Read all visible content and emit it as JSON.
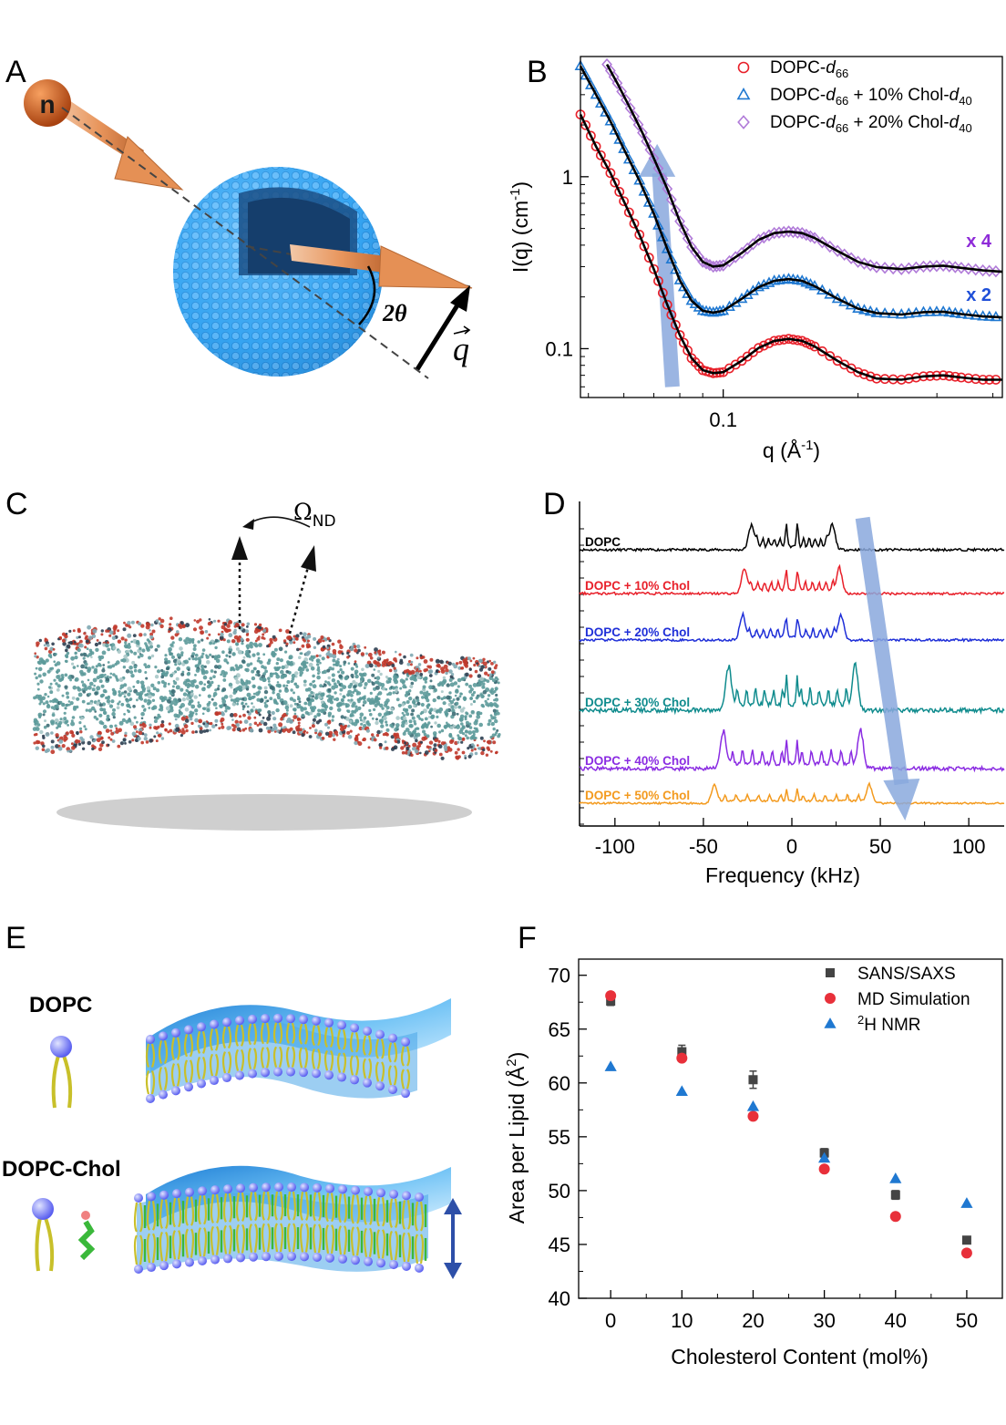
{
  "panels": {
    "A": {
      "label": "A",
      "neutron_label": "n",
      "angle_label": "2θ",
      "q_label": "q"
    },
    "B": {
      "label": "B",
      "scales": [
        {
          "text": "x 4",
          "color": "#8e2bd8"
        },
        {
          "text": "x 2",
          "color": "#1f4fd8"
        }
      ]
    },
    "C": {
      "label": "C",
      "omega_label": "Ω",
      "omega_sub": "ND"
    },
    "D": {
      "label": "D"
    },
    "E": {
      "label": "E",
      "dopc_label": "DOPC",
      "dopc_chol_label": "DOPC-Chol"
    },
    "F": {
      "label": "F"
    }
  },
  "colors": {
    "red": "#e8202a",
    "blue": "#1f78d1",
    "violet": "#b07ad8",
    "black": "#000000",
    "arrow": "#8aa9dd"
  },
  "chart_data": [
    {
      "panel": "B",
      "type": "scatter",
      "xscale": "log",
      "yscale": "log",
      "xlabel": "q (Å",
      "xlabel_sup": "-1",
      "xlabel_end": ")",
      "ylabel": "I(q) (cm",
      "ylabel_sup": "-1",
      "ylabel_end": ")",
      "x_ticks": [
        "0.1"
      ],
      "y_ticks": [
        "1",
        "0.1"
      ],
      "xlim": [
        0.048,
        0.42
      ],
      "ylim": [
        0.052,
        5.0
      ],
      "legend_position": "top-right",
      "legend": [
        {
          "base": "DOPC-",
          "italic": "d",
          "sub": "66",
          "rest": "",
          "italic2": "",
          "sub2": "",
          "marker": "circle",
          "color": "#e8202a"
        },
        {
          "base": "DOPC-",
          "italic": "d",
          "sub": "66",
          "rest": " + 10% Chol-",
          "italic2": "d",
          "sub2": "40",
          "marker": "triangle",
          "color": "#1f78d1"
        },
        {
          "base": "DOPC-",
          "italic": "d",
          "sub": "66",
          "rest": " + 20% Chol-",
          "italic2": "d",
          "sub2": "40",
          "marker": "diamond",
          "color": "#b07ad8"
        }
      ],
      "series": [
        {
          "name": "DOPC-d66",
          "marker": "circle",
          "color": "#e8202a",
          "points": [
            [
              0.048,
              2.3
            ],
            [
              0.052,
              1.5
            ],
            [
              0.056,
              1.05
            ],
            [
              0.06,
              0.72
            ],
            [
              0.065,
              0.46
            ],
            [
              0.07,
              0.29
            ],
            [
              0.075,
              0.18
            ],
            [
              0.08,
              0.12
            ],
            [
              0.085,
              0.088
            ],
            [
              0.09,
              0.075
            ],
            [
              0.095,
              0.072
            ],
            [
              0.1,
              0.073
            ],
            [
              0.11,
              0.085
            ],
            [
              0.12,
              0.101
            ],
            [
              0.13,
              0.111
            ],
            [
              0.14,
              0.114
            ],
            [
              0.15,
              0.111
            ],
            [
              0.16,
              0.103
            ],
            [
              0.18,
              0.085
            ],
            [
              0.2,
              0.073
            ],
            [
              0.22,
              0.067
            ],
            [
              0.25,
              0.066
            ],
            [
              0.28,
              0.069
            ],
            [
              0.31,
              0.07
            ],
            [
              0.34,
              0.068
            ],
            [
              0.38,
              0.066
            ],
            [
              0.42,
              0.066
            ]
          ]
        },
        {
          "name": "DOPC-d66 + 10% Chol-d40",
          "marker": "triangle",
          "color": "#1f78d1",
          "points": [
            [
              0.048,
              4.4
            ],
            [
              0.052,
              3.0
            ],
            [
              0.056,
              2.1
            ],
            [
              0.06,
              1.45
            ],
            [
              0.065,
              0.95
            ],
            [
              0.07,
              0.61
            ],
            [
              0.075,
              0.38
            ],
            [
              0.08,
              0.25
            ],
            [
              0.085,
              0.19
            ],
            [
              0.09,
              0.166
            ],
            [
              0.095,
              0.162
            ],
            [
              0.1,
              0.166
            ],
            [
              0.11,
              0.195
            ],
            [
              0.12,
              0.228
            ],
            [
              0.13,
              0.248
            ],
            [
              0.14,
              0.254
            ],
            [
              0.15,
              0.248
            ],
            [
              0.16,
              0.231
            ],
            [
              0.18,
              0.195
            ],
            [
              0.2,
              0.171
            ],
            [
              0.22,
              0.161
            ],
            [
              0.25,
              0.158
            ],
            [
              0.28,
              0.163
            ],
            [
              0.31,
              0.164
            ],
            [
              0.34,
              0.159
            ],
            [
              0.38,
              0.154
            ],
            [
              0.42,
              0.152
            ]
          ]
        },
        {
          "name": "DOPC-d66 + 20% Chol-d40",
          "marker": "diamond",
          "color": "#b07ad8",
          "points": [
            [
              0.055,
              4.5
            ],
            [
              0.058,
              3.5
            ],
            [
              0.062,
              2.5
            ],
            [
              0.066,
              1.8
            ],
            [
              0.07,
              1.28
            ],
            [
              0.075,
              0.85
            ],
            [
              0.08,
              0.55
            ],
            [
              0.085,
              0.39
            ],
            [
              0.09,
              0.32
            ],
            [
              0.095,
              0.3
            ],
            [
              0.1,
              0.305
            ],
            [
              0.11,
              0.36
            ],
            [
              0.12,
              0.43
            ],
            [
              0.13,
              0.47
            ],
            [
              0.14,
              0.48
            ],
            [
              0.15,
              0.47
            ],
            [
              0.16,
              0.44
            ],
            [
              0.18,
              0.37
            ],
            [
              0.2,
              0.32
            ],
            [
              0.22,
              0.298
            ],
            [
              0.25,
              0.29
            ],
            [
              0.28,
              0.3
            ],
            [
              0.31,
              0.304
            ],
            [
              0.34,
              0.295
            ],
            [
              0.38,
              0.285
            ],
            [
              0.42,
              0.28
            ]
          ]
        }
      ]
    },
    {
      "panel": "D",
      "type": "line",
      "xlabel": "Frequency (kHz)",
      "x_ticks": [
        "-100",
        "-50",
        "0",
        "50",
        "100"
      ],
      "xlim": [
        -120,
        120
      ],
      "series": [
        {
          "name": "DOPC",
          "color": "#000000",
          "splitting_khz": 23
        },
        {
          "name": "DOPC + 10% Chol",
          "color": "#e8202a",
          "splitting_khz": 27
        },
        {
          "name": "DOPC + 20% Chol",
          "color": "#1f2fd8",
          "splitting_khz": 28
        },
        {
          "name": "DOPC + 30% Chol",
          "color": "#0f8b8d",
          "splitting_khz": 36
        },
        {
          "name": "DOPC + 40% Chol",
          "color": "#8a2be2",
          "splitting_khz": 39
        },
        {
          "name": "DOPC + 50% Chol",
          "color": "#f39a1e",
          "splitting_khz": 44
        }
      ]
    },
    {
      "panel": "F",
      "type": "scatter",
      "xlabel": "Cholesterol Content (mol%)",
      "ylabel": "Area per Lipid (Å",
      "ylabel_sup": "2",
      "ylabel_end": ")",
      "x_ticks": [
        "0",
        "10",
        "20",
        "30",
        "40",
        "50"
      ],
      "y_ticks": [
        "40",
        "45",
        "50",
        "55",
        "60",
        "65",
        "70"
      ],
      "xlim": [
        -4.5,
        55
      ],
      "ylim": [
        40,
        71.5
      ],
      "legend_position": "top-right",
      "categories": [
        0,
        10,
        20,
        30,
        40,
        50
      ],
      "series": [
        {
          "name": "SANS/SAXS",
          "marker": "square",
          "color": "#444444",
          "values": [
            67.6,
            62.9,
            60.3,
            53.5,
            49.6,
            45.4
          ],
          "errors": [
            0.4,
            0.6,
            0.8,
            0.4,
            0.4,
            0.3
          ]
        },
        {
          "name": "MD Simulation",
          "marker": "circle",
          "color": "#e8303a",
          "values": [
            68.1,
            62.3,
            56.9,
            52.0,
            47.6,
            44.2
          ],
          "errors": [
            0,
            0,
            0,
            0,
            0,
            0
          ]
        },
        {
          "name": "NMR",
          "prefix_sup": "2",
          "prefix": "H ",
          "marker": "triangle",
          "color": "#1f78d1",
          "values": [
            61.5,
            59.2,
            57.8,
            53.0,
            51.1,
            48.8
          ],
          "errors": [
            0,
            0,
            0,
            0,
            0,
            0
          ]
        }
      ]
    }
  ]
}
